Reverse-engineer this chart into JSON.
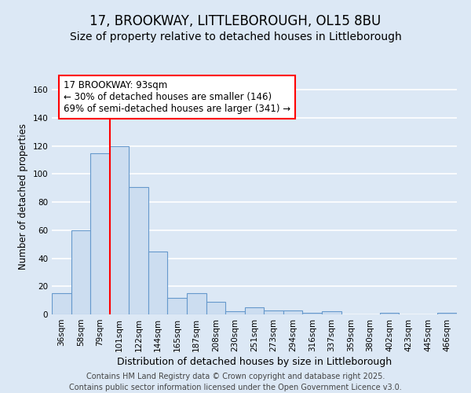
{
  "title1": "17, BROOKWAY, LITTLEBOROUGH, OL15 8BU",
  "title2": "Size of property relative to detached houses in Littleborough",
  "xlabel": "Distribution of detached houses by size in Littleborough",
  "ylabel": "Number of detached properties",
  "categories": [
    "36sqm",
    "58sqm",
    "79sqm",
    "101sqm",
    "122sqm",
    "144sqm",
    "165sqm",
    "187sqm",
    "208sqm",
    "230sqm",
    "251sqm",
    "273sqm",
    "294sqm",
    "316sqm",
    "337sqm",
    "359sqm",
    "380sqm",
    "402sqm",
    "423sqm",
    "445sqm",
    "466sqm"
  ],
  "values": [
    15,
    60,
    115,
    120,
    91,
    45,
    12,
    15,
    9,
    2,
    5,
    3,
    3,
    1,
    2,
    0,
    0,
    1,
    0,
    0,
    1
  ],
  "bar_color": "#ccddf0",
  "bar_edge_color": "#6699cc",
  "red_line_index": 2.5,
  "annotation_text": "17 BROOKWAY: 93sqm\n← 30% of detached houses are smaller (146)\n69% of semi-detached houses are larger (341) →",
  "ylim": [
    0,
    168
  ],
  "yticks": [
    0,
    20,
    40,
    60,
    80,
    100,
    120,
    140,
    160
  ],
  "background_color": "#dce8f5",
  "grid_color": "#ffffff",
  "footer_text": "Contains HM Land Registry data © Crown copyright and database right 2025.\nContains public sector information licensed under the Open Government Licence v3.0.",
  "title1_fontsize": 12,
  "title2_fontsize": 10,
  "xlabel_fontsize": 9,
  "ylabel_fontsize": 8.5,
  "tick_fontsize": 7.5,
  "annotation_fontsize": 8.5,
  "footer_fontsize": 7
}
